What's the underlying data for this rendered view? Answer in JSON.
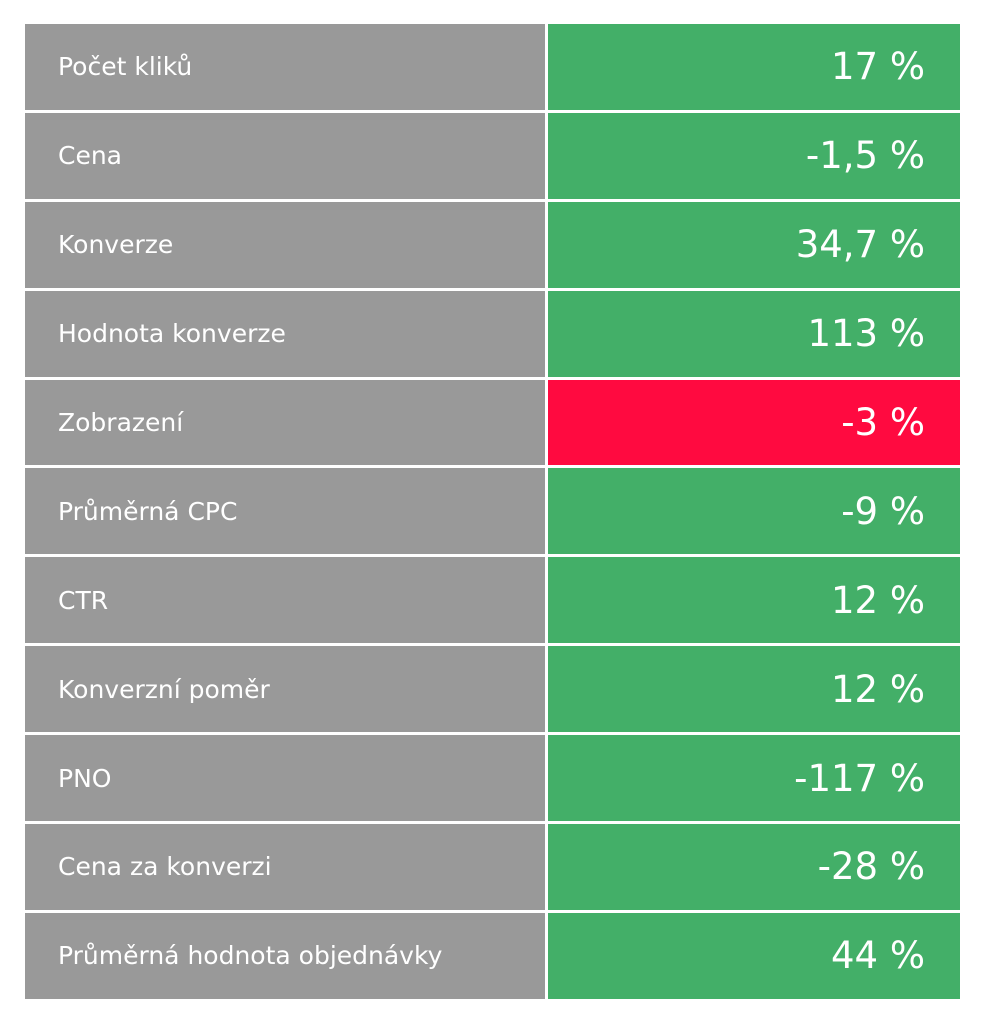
{
  "colors": {
    "label_bg": "#999999",
    "positive": "#43AF68",
    "negative": "#FF0A40"
  },
  "rows": [
    {
      "label": "Počet kliků",
      "value": "17 %",
      "status": "positive"
    },
    {
      "label": "Cena",
      "value": "-1,5 %",
      "status": "positive"
    },
    {
      "label": "Konverze",
      "value": "34,7 %",
      "status": "positive"
    },
    {
      "label": "Hodnota konverze",
      "value": "113 %",
      "status": "positive"
    },
    {
      "label": "Zobrazení",
      "value": "-3 %",
      "status": "negative"
    },
    {
      "label": "Průměrná CPC",
      "value": "-9 %",
      "status": "positive"
    },
    {
      "label": "CTR",
      "value": "12 %",
      "status": "positive"
    },
    {
      "label": "Konverzní poměr",
      "value": "12 %",
      "status": "positive"
    },
    {
      "label": "PNO",
      "value": "-117 %",
      "status": "positive"
    },
    {
      "label": "Cena za konverzi",
      "value": "-28 %",
      "status": "positive"
    },
    {
      "label": "Průměrná hodnota objednávky",
      "value": "44 %",
      "status": "positive"
    }
  ]
}
